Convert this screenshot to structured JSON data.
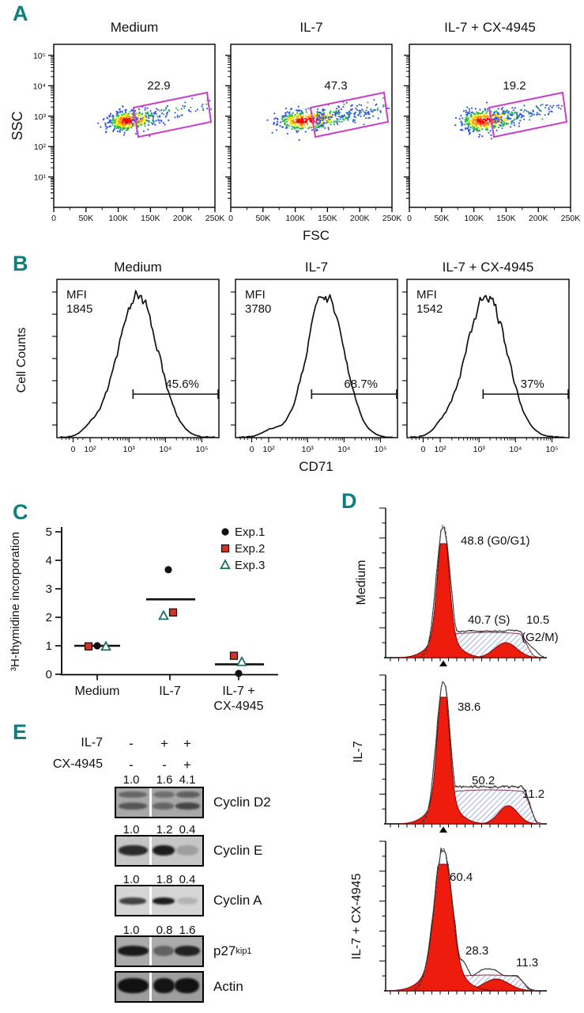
{
  "colors": {
    "panel_letter": "#0d7f80",
    "gate_magenta": "#c83fc8",
    "cellcycle_red": "#ee1c0c",
    "hatch_blue": "#8a94dc",
    "exp2_red": "#d93025",
    "exp3_teal": "#1f6f63"
  },
  "panelA": {
    "letter": "A",
    "ylabel": "SSC",
    "xlabel": "FSC",
    "yticks": [
      "10⁵",
      "10⁴",
      "10³",
      "10²",
      "10¹"
    ],
    "xticks": [
      "0",
      "50K",
      "100K",
      "150K",
      "200K",
      "250K"
    ],
    "plots": [
      {
        "title": "Medium",
        "gate_pct": "22.9"
      },
      {
        "title": "IL-7",
        "gate_pct": "47.3"
      },
      {
        "title": "IL-7 + CX-4945",
        "gate_pct": "19.2"
      }
    ]
  },
  "panelB": {
    "letter": "B",
    "ylabel": "Cell Counts",
    "xlabel": "CD71",
    "xticks": [
      "0",
      "10²",
      "10³",
      "10⁴",
      "10⁵"
    ],
    "plots": [
      {
        "title": "Medium",
        "mfi_label": "MFI",
        "mfi": "1845",
        "pct": "45.6%"
      },
      {
        "title": "IL-7",
        "mfi_label": "MFI",
        "mfi": "3780",
        "pct": "68.7%"
      },
      {
        "title": "IL-7 + CX-4945",
        "mfi_label": "MFI",
        "mfi": "1542",
        "pct": "37%"
      }
    ]
  },
  "panelC": {
    "letter": "C",
    "ylabel": "³H-thymidine incorporation",
    "yticks": [
      "0",
      "1",
      "2",
      "3",
      "4",
      "5"
    ],
    "categories": [
      "Medium",
      "IL-7",
      "IL-7 +",
      "CX-4945"
    ],
    "legend": [
      {
        "label": "Exp.1",
        "marker": "circle"
      },
      {
        "label": "Exp.2",
        "marker": "square"
      },
      {
        "label": "Exp.3",
        "marker": "triangle"
      }
    ]
  },
  "panelD": {
    "letter": "D",
    "rows": [
      {
        "label": "Medium",
        "g0": "48.8 (G0/G1)",
        "s": "40.7 (S)",
        "g2a": "10.5",
        "g2b": "(G2/M)"
      },
      {
        "label": "IL-7",
        "g0": "38.6",
        "s": "50.2",
        "g2a": "11.2",
        "g2b": ""
      },
      {
        "label": "IL-7 + CX-4945",
        "g0": "60.4",
        "s": "28.3",
        "g2a": "11.3",
        "g2b": ""
      }
    ]
  },
  "panelE": {
    "letter": "E",
    "cond_rows": [
      {
        "name": "IL-7",
        "signs": [
          "-",
          "+",
          "+"
        ]
      },
      {
        "name": "CX-4945",
        "signs": [
          "-",
          "-",
          "+"
        ]
      }
    ],
    "blots": [
      {
        "label": "Cyclin D2",
        "sup": "",
        "values": [
          "1.0",
          "1.6",
          "4.1"
        ]
      },
      {
        "label": "Cyclin E",
        "sup": "",
        "values": [
          "1.0",
          "1.2",
          "0.4"
        ]
      },
      {
        "label": "Cyclin A",
        "sup": "",
        "values": [
          "1.0",
          "1.8",
          "0.4"
        ]
      },
      {
        "label": "p27",
        "sup": "kip1",
        "values": [
          "1.0",
          "0.8",
          "1.6"
        ]
      },
      {
        "label": "Actin",
        "sup": "",
        "values": []
      }
    ]
  },
  "chart_data": [
    {
      "type": "scatter",
      "panel": "A",
      "title": "FSC vs SSC with blast gate",
      "xlabel": "FSC",
      "ylabel": "SSC",
      "x_ticks": [
        "0",
        "50K",
        "100K",
        "150K",
        "200K",
        "250K"
      ],
      "y_scale": "log10 1e1 to 1e5",
      "series": [
        {
          "name": "Medium",
          "gate_pct": 22.9
        },
        {
          "name": "IL-7",
          "gate_pct": 47.3
        },
        {
          "name": "IL-7 + CX-4945",
          "gate_pct": 19.2
        }
      ]
    },
    {
      "type": "area",
      "panel": "B",
      "title": "CD71 expression histograms",
      "xlabel": "CD71",
      "ylabel": "Cell Counts",
      "x_ticks": [
        "0",
        "10^2",
        "10^3",
        "10^4",
        "10^5"
      ],
      "series": [
        {
          "name": "Medium",
          "MFI": 1845,
          "positive_pct": 45.6
        },
        {
          "name": "IL-7",
          "MFI": 3780,
          "positive_pct": 68.7
        },
        {
          "name": "IL-7 + CX-4945",
          "MFI": 1542,
          "positive_pct": 37.0
        }
      ]
    },
    {
      "type": "scatter",
      "panel": "C",
      "title": "3H-thymidine incorporation",
      "ylabel": "3H-thymidine incorporation",
      "ylim": [
        0,
        5
      ],
      "categories": [
        "Medium",
        "IL-7",
        "IL-7 + CX-4945"
      ],
      "series": [
        {
          "name": "Exp.1",
          "values": [
            1.0,
            3.7,
            0.03
          ]
        },
        {
          "name": "Exp.2",
          "values": [
            0.98,
            2.17,
            0.65
          ]
        },
        {
          "name": "Exp.3",
          "values": [
            0.97,
            2.05,
            0.43
          ]
        }
      ],
      "means": [
        1.0,
        2.63,
        0.35
      ],
      "legend_position": "top-right"
    },
    {
      "type": "area",
      "panel": "D",
      "title": "Cell cycle histograms",
      "categories": [
        "G0/G1",
        "S",
        "G2/M"
      ],
      "series": [
        {
          "name": "Medium",
          "values": [
            48.8,
            40.7,
            10.5
          ]
        },
        {
          "name": "IL-7",
          "values": [
            38.6,
            50.2,
            11.2
          ]
        },
        {
          "name": "IL-7 + CX-4945",
          "values": [
            60.4,
            28.3,
            11.3
          ]
        }
      ]
    },
    {
      "type": "table",
      "panel": "E",
      "title": "Immunoblot densitometry (relative units)",
      "columns": [
        "IL-7",
        "CX-4945",
        "Cyclin D2",
        "Cyclin E",
        "Cyclin A",
        "p27kip1"
      ],
      "rows": [
        [
          "-",
          "-",
          1.0,
          1.0,
          1.0,
          1.0
        ],
        [
          "+",
          "-",
          1.6,
          1.2,
          1.8,
          0.8
        ],
        [
          "+",
          "+",
          4.1,
          0.4,
          0.4,
          1.6
        ]
      ]
    }
  ]
}
